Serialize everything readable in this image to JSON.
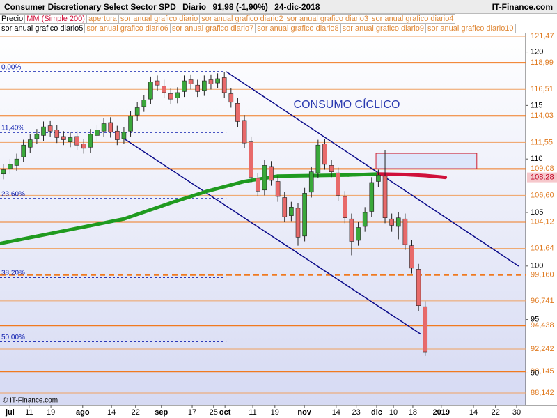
{
  "header": {
    "title": "Consumer Discretionary Select Sector SPD",
    "period": "Diario",
    "last": "91,98 (-1,90%)",
    "date": "24-dic-2018",
    "site": "IT-Finance.com"
  },
  "tabs": [
    [
      "Precio",
      "MM (Simple 200)",
      "apertura",
      "sor anual grafico diario",
      "sor anual grafico diario2",
      "sor anual grafico diario3",
      "sor anual grafico diario4"
    ],
    [
      "sor anual grafico diario5",
      "sor anual grafico diario6",
      "sor anual grafico diario7",
      "sor anual grafico diario8",
      "sor anual grafico diario9",
      "sor anual grafico diario10"
    ]
  ],
  "footer": "© IT-Finance.com",
  "chart_data": {
    "type": "candlestick",
    "annotation": "CONSUMO CÍCLICO",
    "up_color": "#3aa83a",
    "down_color": "#e86a6a",
    "x": [
      1,
      3,
      5,
      7,
      9,
      11,
      13,
      15,
      17,
      19,
      21,
      23,
      25,
      27,
      29,
      31,
      33,
      35,
      37,
      39,
      41,
      43,
      45,
      47,
      49,
      51,
      53,
      55,
      57,
      59,
      61,
      63,
      65,
      67,
      69,
      71,
      73,
      75,
      77,
      79,
      81,
      83,
      85,
      87,
      89,
      91,
      93,
      95,
      97,
      99,
      101,
      103,
      105,
      107,
      109,
      111,
      113,
      115,
      117,
      119,
      121,
      123,
      125,
      127
    ],
    "open": [
      108.6,
      109.1,
      109.4,
      110.2,
      111.1,
      111.9,
      112.2,
      113.1,
      112.7,
      112.1,
      111.6,
      112.1,
      111.4,
      111.1,
      112.2,
      112.6,
      113.4,
      112.6,
      111.9,
      112.6,
      114.1,
      114.9,
      115.6,
      117.3,
      116.8,
      116.1,
      115.7,
      116.3,
      117.4,
      116.9,
      116.4,
      117.4,
      117.1,
      117.6,
      116.1,
      115.2,
      113.6,
      111.6,
      108.2,
      107.1,
      109.3,
      107.9,
      106.4,
      104.7,
      105.4,
      102.8,
      106.9,
      108.7,
      111.4,
      109.4,
      108.7,
      106.5,
      104.4,
      102.4,
      103.7,
      105.1,
      107.9,
      108.4,
      104.4,
      103.7,
      104.4,
      101.9,
      99.7,
      96.2
    ],
    "high": [
      109.5,
      110.0,
      110.5,
      111.8,
      112.3,
      112.8,
      113.5,
      113.6,
      113.2,
      112.6,
      112.5,
      112.6,
      111.9,
      112.8,
      113.2,
      113.8,
      113.9,
      113.1,
      113.0,
      114.5,
      115.3,
      116.0,
      117.7,
      117.8,
      117.4,
      116.6,
      116.7,
      117.8,
      117.9,
      117.4,
      117.8,
      117.9,
      118.0,
      118.1,
      116.6,
      115.7,
      114.1,
      112.1,
      108.7,
      109.9,
      109.8,
      108.4,
      106.9,
      106.0,
      105.9,
      107.3,
      109.3,
      111.8,
      111.9,
      109.9,
      109.2,
      107.0,
      104.9,
      104.1,
      105.5,
      108.3,
      109.0,
      110.8,
      104.9,
      105.0,
      104.9,
      102.4,
      100.2,
      96.7
    ],
    "low": [
      108.1,
      108.6,
      108.9,
      109.7,
      110.6,
      111.4,
      111.7,
      112.1,
      111.5,
      111.3,
      111.1,
      110.8,
      110.5,
      110.6,
      111.7,
      112.1,
      112.0,
      111.3,
      111.4,
      112.1,
      113.6,
      114.4,
      115.1,
      116.4,
      115.7,
      115.1,
      115.2,
      115.8,
      116.5,
      115.8,
      115.9,
      116.5,
      116.6,
      115.7,
      114.8,
      113.0,
      111.0,
      107.8,
      106.5,
      106.6,
      107.5,
      106.0,
      104.1,
      104.2,
      101.9,
      102.3,
      106.4,
      108.2,
      109.0,
      108.3,
      106.1,
      104.0,
      101.0,
      101.9,
      103.2,
      104.6,
      107.4,
      104.0,
      103.2,
      102.5,
      101.5,
      99.3,
      95.8,
      91.6
    ],
    "close": [
      109.0,
      109.5,
      110.0,
      111.3,
      111.8,
      112.3,
      113.0,
      112.6,
      112.0,
      111.8,
      112.0,
      111.3,
      111.0,
      112.3,
      112.7,
      113.3,
      112.5,
      111.8,
      112.5,
      114.0,
      114.8,
      115.5,
      117.2,
      116.9,
      116.2,
      115.6,
      116.2,
      117.3,
      117.0,
      116.3,
      117.3,
      117.0,
      117.5,
      116.2,
      115.3,
      113.5,
      111.5,
      108.3,
      107.0,
      109.4,
      108.0,
      106.5,
      104.6,
      105.5,
      102.7,
      106.8,
      108.8,
      111.3,
      109.5,
      108.8,
      106.6,
      104.5,
      102.3,
      103.6,
      105.0,
      107.8,
      108.5,
      104.5,
      103.8,
      104.5,
      102.0,
      99.8,
      96.3,
      91.98
    ],
    "ma": {
      "name": "MM (Simple 200)",
      "color": "#1f9a1f",
      "color_down": "#d0103a",
      "x": [
        0,
        21,
        37,
        52,
        62,
        73,
        83,
        94,
        104,
        113,
        121,
        127,
        133
      ],
      "values": [
        102.1,
        103.4,
        104.4,
        106.0,
        107.0,
        107.9,
        108.4,
        108.45,
        108.5,
        108.6,
        108.55,
        108.45,
        108.28
      ],
      "label": {
        "value": 108.28,
        "label": "108,28"
      }
    },
    "xlim": [
      0,
      157
    ],
    "ylim": [
      87.1,
      121.73
    ],
    "yticks": [
      120,
      115,
      110,
      105,
      100,
      95,
      90
    ],
    "levels": [
      {
        "value": 121.47,
        "label": "121,47"
      },
      {
        "value": 118.99,
        "label": "118,99"
      },
      {
        "value": 116.51,
        "label": "116,51"
      },
      {
        "value": 114.03,
        "label": "114,03"
      },
      {
        "value": 111.55,
        "label": "111,55"
      },
      {
        "value": 109.08,
        "label": "109,08"
      },
      {
        "value": 106.6,
        "label": "106,60"
      },
      {
        "value": 104.12,
        "label": "104,12"
      },
      {
        "value": 101.64,
        "label": "101,64"
      },
      {
        "value": 99.16,
        "label": "99,160"
      },
      {
        "value": 96.741,
        "label": "96,741"
      },
      {
        "value": 94.438,
        "label": "94,438"
      },
      {
        "value": 92.242,
        "label": "92,242"
      },
      {
        "value": 90.145,
        "label": "90,145"
      },
      {
        "value": 88.142,
        "label": "88,142"
      }
    ],
    "level_styles": [
      "thin",
      "thick",
      "thin",
      "thick",
      "thin",
      "thick",
      "thin",
      "thick",
      "thin",
      "dashed",
      "thin",
      "thick",
      "thin",
      "thick",
      "thin"
    ],
    "fibonacci": [
      {
        "label": "0,00%",
        "value": 118.15
      },
      {
        "label": "11,40%",
        "value": 112.49
      },
      {
        "label": "23,60%",
        "value": 106.3
      },
      {
        "label": "38,20%",
        "value": 98.94
      },
      {
        "label": "50,00%",
        "value": 92.95
      }
    ],
    "fib_x": [
      0,
      67.6
    ],
    "trendlines": [
      {
        "x": [
          36.4,
          125.8
        ],
        "values": [
          112.03,
          93.61
        ]
      },
      {
        "x": [
          67.6,
          154.9
        ],
        "values": [
          118.15,
          99.99
        ]
      }
    ],
    "zone": {
      "x": [
        112.3,
        142.4
      ],
      "values": [
        110.53,
        109.1
      ]
    },
    "xticks": [
      {
        "value": 3,
        "label": "jul"
      },
      {
        "value": 8.7,
        "label": "11"
      },
      {
        "value": 15.2,
        "label": "19"
      },
      {
        "value": 24.7,
        "label": "ago"
      },
      {
        "value": 33.3,
        "label": "14"
      },
      {
        "value": 40.5,
        "label": "22"
      },
      {
        "value": 48.2,
        "label": "sep"
      },
      {
        "value": 57.4,
        "label": "17"
      },
      {
        "value": 63.8,
        "label": "25"
      },
      {
        "value": 67.2,
        "label": "oct"
      },
      {
        "value": 75.5,
        "label": "11"
      },
      {
        "value": 82.1,
        "label": "19"
      },
      {
        "value": 90.9,
        "label": "nov"
      },
      {
        "value": 100.4,
        "label": "14"
      },
      {
        "value": 106.4,
        "label": "23"
      },
      {
        "value": 112.5,
        "label": "dic"
      },
      {
        "value": 117.5,
        "label": "10"
      },
      {
        "value": 123.3,
        "label": "18"
      },
      {
        "value": 131.8,
        "label": "2019"
      },
      {
        "value": 141.4,
        "label": "14"
      },
      {
        "value": 148,
        "label": "22"
      },
      {
        "value": 154.3,
        "label": "30"
      }
    ]
  }
}
